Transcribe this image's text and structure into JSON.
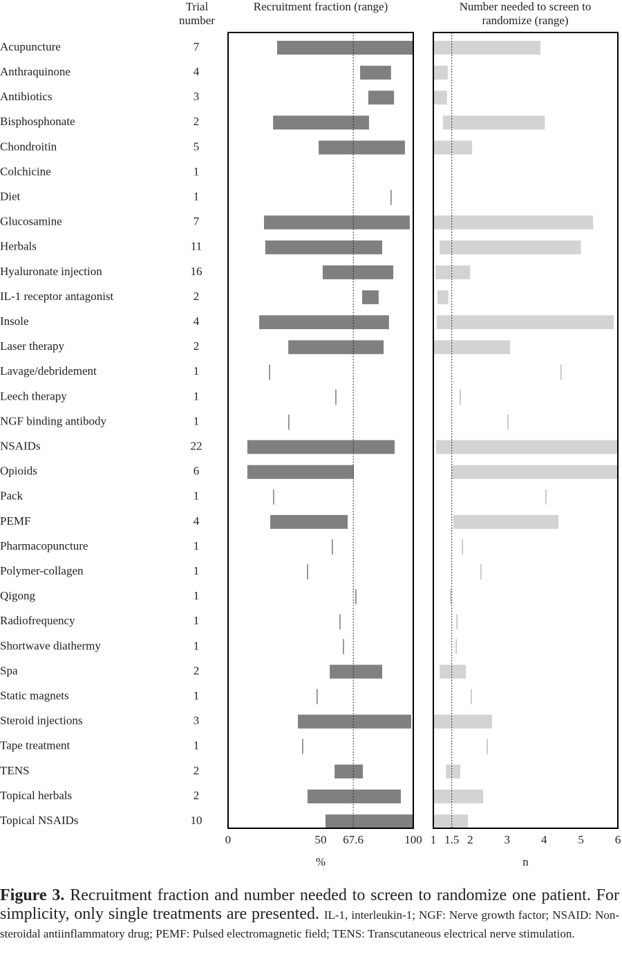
{
  "chart_data": {
    "type": "range",
    "row_header": "Trial number",
    "categories": [
      "Acupuncture",
      "Anthraquinone",
      "Antibiotics",
      "Bisphosphonate",
      "Chondroitin",
      "Colchicine",
      "Diet",
      "Glucosamine",
      "Herbals",
      "Hyaluronate injection",
      "IL-1 receptor antagonist",
      "Insole",
      "Laser therapy",
      "Lavage/debridement",
      "Leech therapy",
      "NGF binding antibody",
      "NSAIDs",
      "Opioids",
      "Pack",
      "PEMF",
      "Pharmacopuncture",
      "Polymer-collagen",
      "Qigong",
      "Radiofrequency",
      "Shortwave diathermy",
      "Spa",
      "Static magnets",
      "Steroid injections",
      "Tape treatment",
      "TENS",
      "Topical herbals",
      "Topical NSAIDs"
    ],
    "trials": [
      7,
      4,
      3,
      2,
      5,
      1,
      1,
      7,
      11,
      16,
      2,
      4,
      2,
      1,
      1,
      1,
      22,
      6,
      1,
      4,
      1,
      1,
      1,
      1,
      1,
      2,
      1,
      3,
      1,
      2,
      2,
      10
    ],
    "panels": [
      {
        "title": "Recruitment fraction (range)",
        "xlabel": "%",
        "xlim": [
          0,
          100
        ],
        "xticks": [
          0,
          50,
          67.6,
          100
        ],
        "reference": 67.6,
        "color": "#808080",
        "values": [
          [
            26.5,
            100
          ],
          [
            71.3,
            88
          ],
          [
            75.7,
            89.6
          ],
          [
            24.3,
            76.1
          ],
          [
            48.9,
            95.5
          ],
          null,
          [
            88
          ],
          [
            19.4,
            98.1
          ],
          [
            20.1,
            83.2
          ],
          [
            51.1,
            89.2
          ],
          [
            72.4,
            81.3
          ],
          [
            16.8,
            86.9
          ],
          [
            32.5,
            84
          ],
          [
            22.4
          ],
          [
            58.2
          ],
          [
            32.8
          ],
          [
            10.4,
            89.9
          ],
          [
            10.4,
            67.9
          ],
          [
            24.6
          ],
          [
            22.8,
            64.6
          ],
          [
            56.3
          ],
          [
            42.9
          ],
          [
            69
          ],
          [
            60.4
          ],
          [
            62.3
          ],
          [
            54.9,
            83.2
          ],
          [
            48.1
          ],
          [
            37.7,
            98.9
          ],
          [
            40.3
          ],
          [
            57.5,
            72.8
          ],
          [
            42.9,
            93.3
          ],
          [
            52.6,
            100
          ]
        ]
      },
      {
        "title": "Number needed to screen to randomize (range)",
        "xlabel": "n",
        "xlim": [
          1,
          6
        ],
        "xticks": [
          1,
          1.5,
          2,
          3,
          4,
          5,
          6
        ],
        "reference": 1.5,
        "color": "#d3d3d3",
        "values": [
          [
            1,
            3.9
          ],
          [
            1,
            1.39
          ],
          [
            1,
            1.37
          ],
          [
            1.26,
            4.02
          ],
          [
            1,
            2.05
          ],
          null,
          null,
          [
            1,
            5.33
          ],
          [
            1.17,
            5
          ],
          [
            1.06,
            2
          ],
          [
            1.11,
            1.41
          ],
          [
            1.09,
            5.89
          ],
          [
            1,
            3.08
          ],
          [
            4.46
          ],
          [
            1.73
          ],
          [
            3.02
          ],
          [
            1.07,
            6
          ],
          [
            1.49,
            6
          ],
          [
            4.05
          ],
          [
            1.54,
            4.39
          ],
          [
            1.79
          ],
          [
            2.29
          ],
          [
            1.47
          ],
          [
            1.64
          ],
          [
            1.62
          ],
          [
            1.17,
            1.88
          ],
          [
            2.03
          ],
          [
            1,
            2.59
          ],
          [
            2.46
          ],
          [
            1.34,
            1.73
          ],
          [
            1,
            2.35
          ],
          [
            1,
            1.94
          ]
        ]
      }
    ]
  },
  "caption": {
    "label": "Figure 3.",
    "text": "Recruitment fraction and number needed to screen to randomize one patient. For simplicity, only single treatments are presented.",
    "note": "IL-1, interleukin-1; NGF: Nerve growth factor; NSAID: Non-steroidal antiinflammatory drug; PEMF: Pulsed electromagnetic field; TENS: Transcutaneous electrical nerve stimulation."
  }
}
